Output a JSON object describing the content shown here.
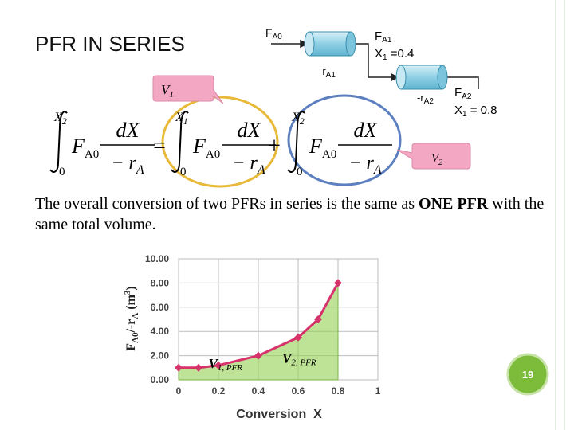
{
  "slide": {
    "title": "PFR IN SERIES",
    "sentence": {
      "plain": "The overall conversion of two PFRs in series is the same as ",
      "bold": "ONE PFR",
      "rest": " with the same total volume."
    },
    "page_number": "19"
  },
  "reactor_diagram": {
    "feed": {
      "main": "F",
      "sub": "A0"
    },
    "reactor_1_rate": {
      "main": "-r",
      "sub": "A1"
    },
    "outlet_1": {
      "main": "F",
      "sub": "A1"
    },
    "conversion_1": {
      "main": "X",
      "sub": "1",
      "rest": " =0.4"
    },
    "reactor_2_rate": {
      "main": "-r",
      "sub": "A2"
    },
    "outlet_2": {
      "main": "F",
      "sub": "A2"
    },
    "conversion_2": {
      "main": "X",
      "sub": "1",
      "rest": " = 0.8"
    }
  },
  "equation": {
    "terms": [
      {
        "upper": {
          "main": "X",
          "sub": "2"
        },
        "lower": "0"
      },
      {
        "upper": {
          "main": "X",
          "sub": "1"
        },
        "lower": "0"
      },
      {
        "upper": {
          "main": "X",
          "sub": "2"
        },
        "lower": "0"
      }
    ],
    "integrand": {
      "f": "F",
      "f_sub": "A0",
      "numerator": "dX",
      "denominator": "− r",
      "denominator_sub": "A"
    },
    "operators": [
      "=",
      "+"
    ],
    "callouts": [
      {
        "main": "V",
        "sub": "1"
      },
      {
        "main": "V",
        "sub": "2"
      }
    ]
  },
  "chart_data": {
    "type": "line",
    "x_label": "Conversion  X",
    "y_label": [
      {
        "text": "F"
      },
      {
        "text": "A0",
        "sub": true
      },
      {
        "text": "/-r"
      },
      {
        "text": "A",
        "sub": true
      },
      {
        "text": " (m"
      },
      {
        "text": "3",
        "sup": true
      },
      {
        "text": ")"
      }
    ],
    "x": [
      0,
      0.1,
      0.2,
      0.4,
      0.6,
      0.7,
      0.8
    ],
    "values": [
      1.0,
      1.0,
      1.2,
      2.0,
      3.5,
      5.0,
      8.0
    ],
    "color": "#d6336c",
    "area_color": "#92d050",
    "xlim": [
      0,
      1
    ],
    "xticks": [
      0,
      0.2,
      0.4,
      0.6,
      0.8,
      1
    ],
    "ylim": [
      0,
      10
    ],
    "yticks": [
      {
        "value": 0,
        "label": "0.00"
      },
      {
        "value": 2,
        "label": "2.00"
      },
      {
        "value": 4,
        "label": "4.00"
      },
      {
        "value": 6,
        "label": "6.00"
      },
      {
        "value": 8,
        "label": "8.00"
      },
      {
        "value": 10,
        "label": "10.00"
      }
    ],
    "grid": true,
    "annotations": [
      {
        "main": "V",
        "sub": "1, PFR",
        "x": 0.15,
        "y": 1.0
      },
      {
        "main": "V",
        "sub": "2, PFR",
        "x": 0.52,
        "y": 1.4
      }
    ]
  }
}
